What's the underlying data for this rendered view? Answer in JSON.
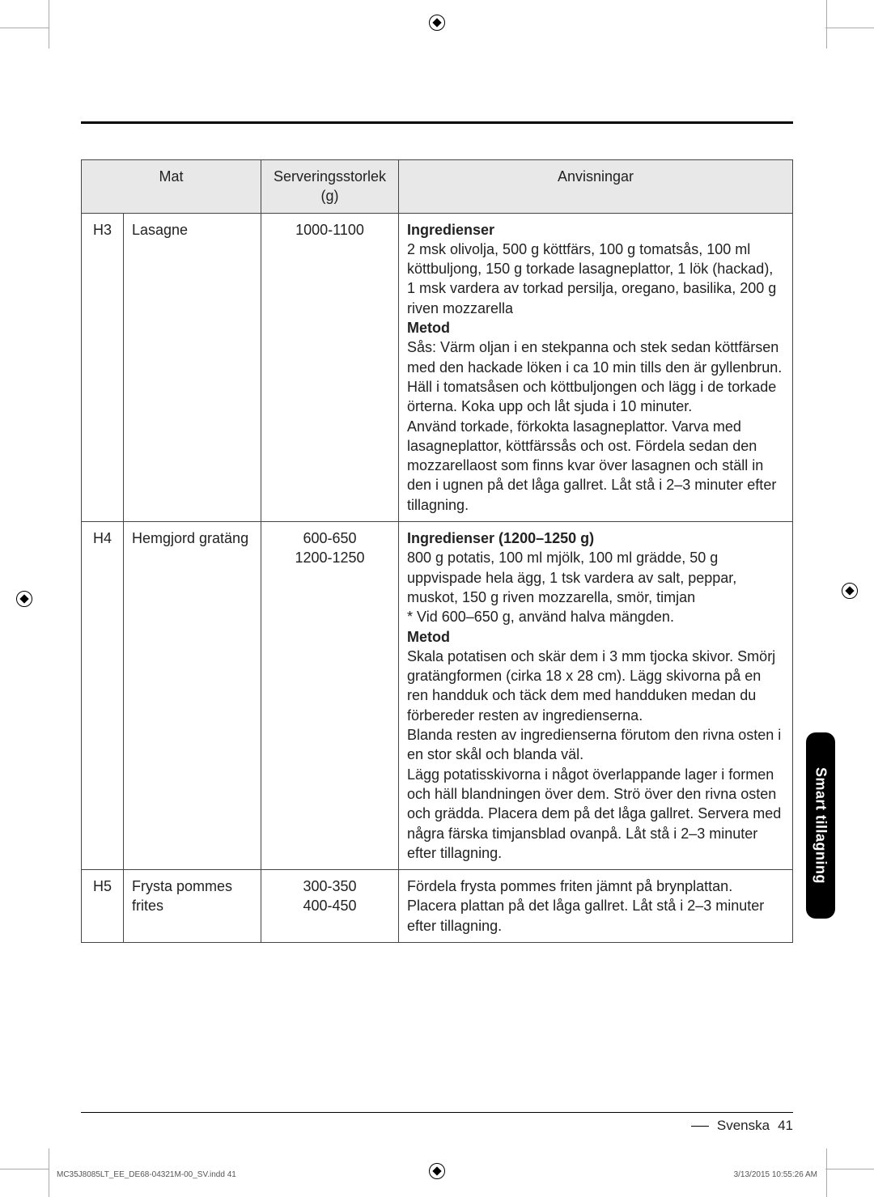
{
  "table": {
    "headers": {
      "mat": "Mat",
      "size": "Serveringsstorlek (g)",
      "instructions": "Anvisningar"
    },
    "rows": [
      {
        "code": "H3",
        "name": "Lasagne",
        "size": "1000-1100",
        "instructions_html": "<b>Ingredienser</b><br>2 msk olivolja, 500 g köttfärs, 100 g tomatsås, 100 ml köttbuljong, 150 g torkade lasagneplattor, 1 lök (hackad), 1 msk vardera av torkad persilja, oregano, basilika, 200 g riven mozzarella<br><b>Metod</b><br>Sås: Värm oljan i en stekpanna och stek sedan köttfärsen med den hackade löken i ca 10 min tills den är gyllenbrun. Häll i tomatsåsen och köttbuljongen och lägg i de torkade örterna. Koka upp och låt sjuda i 10 minuter.<br>Använd torkade, förkokta lasagneplattor. Varva med lasagneplattor, köttfärssås och ost. Fördela sedan den mozzarellaost som finns kvar över lasagnen och ställ in den i ugnen på det låga gallret. Låt stå i 2–3 minuter efter tillagning."
      },
      {
        "code": "H4",
        "name": "Hemgjord gratäng",
        "size_lines": [
          "600-650",
          "1200-1250"
        ],
        "instructions_html": "<b>Ingredienser (1200–1250 g)</b><br>800 g potatis, 100 ml mjölk, 100 ml grädde, 50 g uppvispade hela ägg, 1 tsk vardera av salt, peppar, muskot, 150 g riven mozzarella, smör, timjan<br>* Vid 600–650 g, använd halva mängden.<br><b>Metod</b><br>Skala potatisen och skär dem i 3 mm tjocka skivor. Smörj gratängformen (cirka 18 x 28 cm). Lägg skivorna på en ren handduk och täck dem med handduken medan du förbereder resten av ingredienserna.<br>Blanda resten av ingredienserna förutom den rivna osten i en stor skål och blanda väl.<br>Lägg potatisskivorna i något överlappande lager i formen och häll blandningen över dem. Strö över den rivna osten och grädda. Placera dem på det låga gallret. Servera med några färska timjansblad ovanpå. Låt stå i 2–3 minuter efter tillagning."
      },
      {
        "code": "H5",
        "name": "Frysta pommes frites",
        "size_lines": [
          "300-350",
          "400-450"
        ],
        "instructions_html": "Fördela frysta pommes friten jämnt på brynplattan. Placera plattan på det låga gallret. Låt stå i 2–3 minuter efter tillagning."
      }
    ]
  },
  "side_tab": "Smart tillagning",
  "footer": {
    "language": "Svenska",
    "page": "41"
  },
  "imprint": {
    "left": "MC35J8085LT_EE_DE68-04321M-00_SV.indd   41",
    "right": "3/13/2015   10:55:26 AM"
  }
}
